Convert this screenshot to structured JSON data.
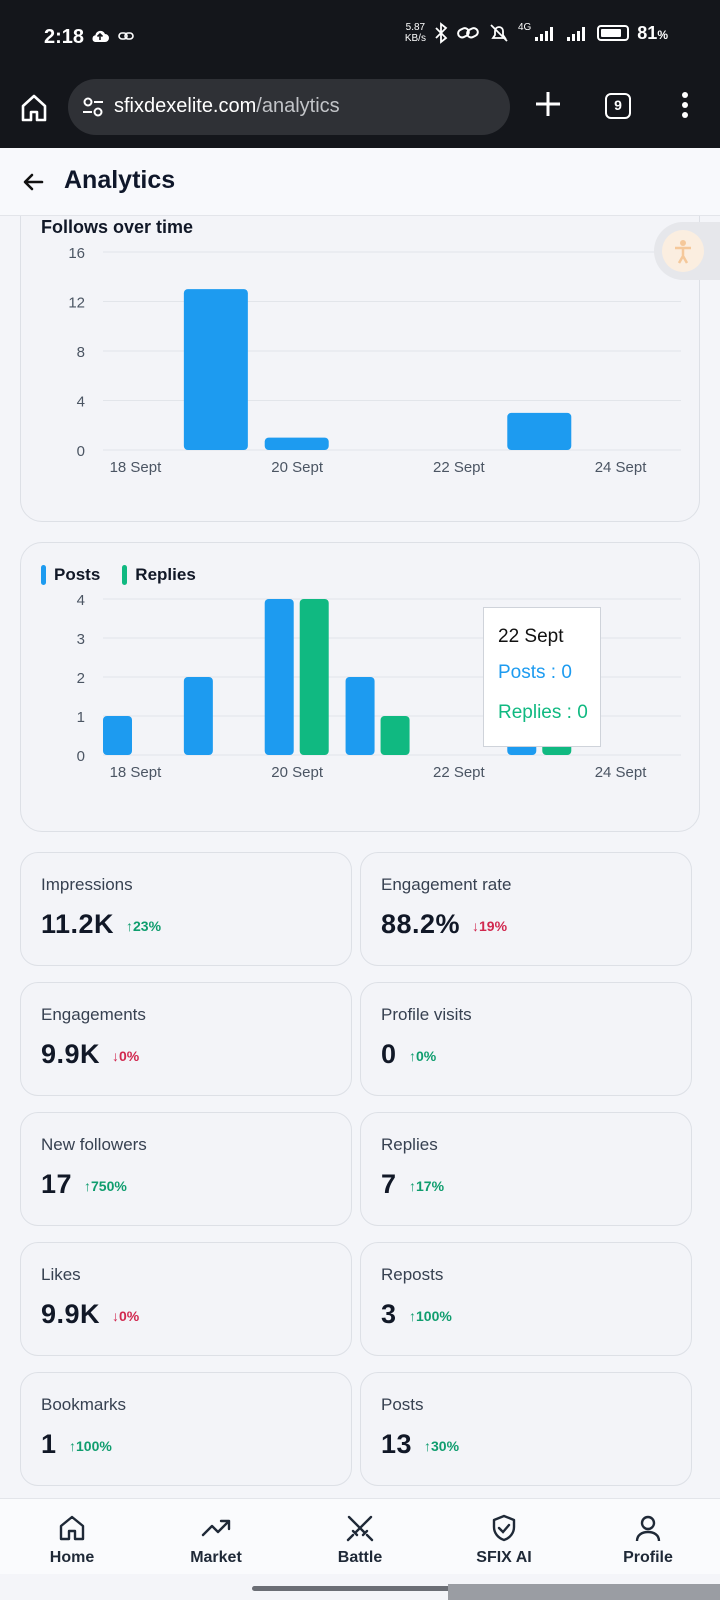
{
  "status_bar": {
    "time": "2:18",
    "net_speed_value": "5.87",
    "net_speed_unit": "KB/s",
    "network": "4G",
    "battery": "81",
    "battery_unit": "%",
    "battery_level_percent": 81
  },
  "browser": {
    "url_domain": "sfixdexelite.com",
    "url_path": "/analytics",
    "tab_count": "9"
  },
  "header": {
    "title": "Analytics"
  },
  "colors": {
    "posts": "#1d9bf0",
    "replies": "#10b981",
    "up": "#0f9d6e",
    "down": "#d1284f"
  },
  "chart_data": [
    {
      "type": "bar",
      "title": "Follows over time",
      "x_ticks": [
        "18 Sept",
        "20 Sept",
        "22 Sept",
        "24 Sept"
      ],
      "categories": [
        "18 Sept",
        "19 Sept",
        "20 Sept",
        "21 Sept",
        "22 Sept",
        "23 Sept",
        "24 Sept"
      ],
      "series": [
        {
          "values": [
            0,
            13,
            1,
            0,
            0,
            3,
            0
          ]
        }
      ],
      "y_ticks": [
        0,
        4,
        8,
        12,
        16
      ],
      "ylim": [
        0,
        16
      ],
      "grid": true
    },
    {
      "type": "bar",
      "title": "",
      "x_ticks": [
        "18 Sept",
        "20 Sept",
        "22 Sept",
        "24 Sept"
      ],
      "categories": [
        "18 Sept",
        "19 Sept",
        "20 Sept",
        "21 Sept",
        "22 Sept",
        "23 Sept",
        "24 Sept"
      ],
      "series": [
        {
          "name": "Posts",
          "values": [
            1,
            2,
            4,
            2,
            0,
            1,
            0
          ]
        },
        {
          "name": "Replies",
          "values": [
            0,
            0,
            4,
            1,
            0,
            1,
            0
          ]
        }
      ],
      "y_ticks": [
        0,
        1,
        2,
        3,
        4
      ],
      "ylim": [
        0,
        4
      ],
      "grid": true,
      "legend": "top-left",
      "tooltip": {
        "title": "22 Sept",
        "posts_label": "Posts : 0",
        "replies_label": "Replies : 0"
      }
    }
  ],
  "stats": [
    {
      "label": "Impressions",
      "value": "11.2K",
      "change": "23%",
      "dir": "up"
    },
    {
      "label": "Engagement rate",
      "value": "88.2%",
      "change": "19%",
      "dir": "down"
    },
    {
      "label": "Engagements",
      "value": "9.9K",
      "change": "0%",
      "dir": "down"
    },
    {
      "label": "Profile visits",
      "value": "0",
      "change": "0%",
      "dir": "up"
    },
    {
      "label": "New followers",
      "value": "17",
      "change": "750%",
      "dir": "up"
    },
    {
      "label": "Replies",
      "value": "7",
      "change": "17%",
      "dir": "up"
    },
    {
      "label": "Likes",
      "value": "9.9K",
      "change": "0%",
      "dir": "down"
    },
    {
      "label": "Reposts",
      "value": "3",
      "change": "100%",
      "dir": "up"
    },
    {
      "label": "Bookmarks",
      "value": "1",
      "change": "100%",
      "dir": "up"
    },
    {
      "label": "Posts",
      "value": "13",
      "change": "30%",
      "dir": "up"
    }
  ],
  "nav": [
    {
      "label": "Home",
      "icon": "home-icon"
    },
    {
      "label": "Market",
      "icon": "trending-up-icon"
    },
    {
      "label": "Battle",
      "icon": "crossed-swords-icon"
    },
    {
      "label": "SFIX AI",
      "icon": "shield-check-icon"
    },
    {
      "label": "Profile",
      "icon": "person-icon"
    }
  ]
}
